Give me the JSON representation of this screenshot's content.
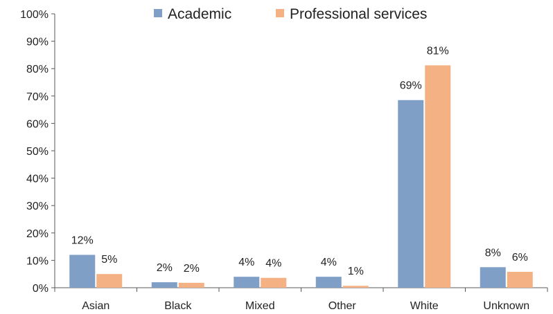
{
  "chart_data": {
    "type": "bar",
    "title": "",
    "xlabel": "",
    "ylabel": "",
    "categories": [
      "Asian",
      "Black",
      "Mixed",
      "Other",
      "White",
      "Unknown"
    ],
    "series": [
      {
        "name": "Academic",
        "color": "#7f9fc6",
        "values": [
          12,
          2,
          4,
          4,
          68.5,
          7.5
        ],
        "labels": [
          "12%",
          "2%",
          "4%",
          "4%",
          "69%",
          "8%"
        ]
      },
      {
        "name": "Professional services",
        "color": "#f4b183",
        "values": [
          5,
          1.8,
          3.6,
          0.7,
          81.2,
          5.8
        ],
        "labels": [
          "5%",
          "2%",
          "4%",
          "1%",
          "81%",
          "6%"
        ]
      }
    ],
    "ylim": [
      0,
      100
    ],
    "yticks": [
      0,
      10,
      20,
      30,
      40,
      50,
      60,
      70,
      80,
      90,
      100
    ],
    "ytick_labels": [
      "0%",
      "10%",
      "20%",
      "30%",
      "40%",
      "50%",
      "60%",
      "70%",
      "80%",
      "90%",
      "100%"
    ],
    "grid": false,
    "legend_position": "top"
  }
}
